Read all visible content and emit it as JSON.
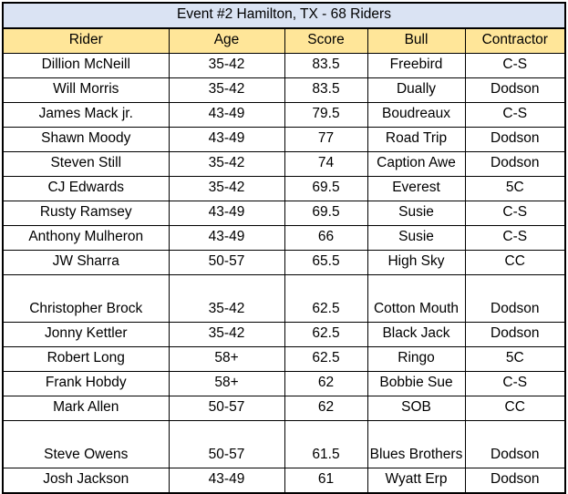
{
  "title": "Event #2 Hamilton, TX - 68 Riders",
  "columns": [
    "Rider",
    "Age",
    "Score",
    "Bull",
    "Contractor"
  ],
  "rows": [
    [
      "Dillion McNeill",
      "35-42",
      "83.5",
      "Freebird",
      "C-S"
    ],
    [
      "Will Morris",
      "35-42",
      "83.5",
      "Dually",
      "Dodson"
    ],
    [
      "James Mack jr.",
      "43-49",
      "79.5",
      "Boudreaux",
      "C-S"
    ],
    [
      "Shawn Moody",
      "43-49",
      "77",
      "Road Trip",
      "Dodson"
    ],
    [
      "Steven Still",
      "35-42",
      "74",
      "Caption Awe",
      "Dodson"
    ],
    [
      "CJ Edwards",
      "35-42",
      "69.5",
      "Everest",
      "5C"
    ],
    [
      "Rusty Ramsey",
      "43-49",
      "69.5",
      "Susie",
      "C-S"
    ],
    [
      "Anthony Mulheron",
      "43-49",
      "66",
      "Susie",
      "C-S"
    ],
    [
      "JW Sharra",
      "50-57",
      "65.5",
      "High Sky",
      "CC"
    ],
    [
      "Christopher Brock",
      "35-42",
      "62.5",
      "Cotton Mouth",
      "Dodson"
    ],
    [
      "Jonny Kettler",
      "35-42",
      "62.5",
      "Black Jack",
      "Dodson"
    ],
    [
      "Robert Long",
      "58+",
      "62.5",
      "Ringo",
      "5C"
    ],
    [
      "Frank Hobdy",
      "58+",
      "62",
      "Bobbie Sue",
      "C-S"
    ],
    [
      "Mark Allen",
      "50-57",
      "62",
      "SOB",
      "CC"
    ],
    [
      "Steve Owens",
      "50-57",
      "61.5",
      "Blues Brothers",
      "Dodson"
    ],
    [
      "Josh Jackson",
      "43-49",
      "61",
      "Wyatt Erp",
      "Dodson"
    ]
  ],
  "colors": {
    "title_bg": "#dae3f3",
    "header_bg": "#ffe699"
  }
}
